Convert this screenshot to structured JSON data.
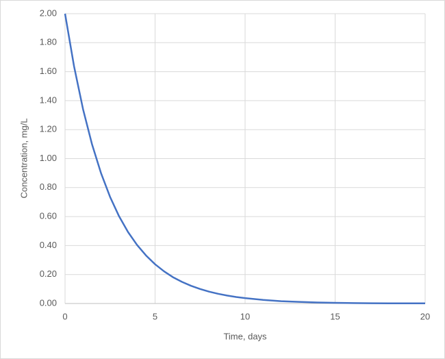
{
  "chart_data": {
    "type": "line",
    "x_label": "Time, days",
    "y_label": "Concentration, mg/L",
    "x": [
      0,
      0.5,
      1,
      1.5,
      2,
      2.5,
      3,
      3.5,
      4,
      4.5,
      5,
      5.5,
      6,
      6.5,
      7,
      7.5,
      8,
      8.5,
      9,
      9.5,
      10,
      11,
      12,
      13,
      14,
      15,
      16,
      17,
      18,
      19,
      20
    ],
    "series": [
      {
        "name": "Concentration",
        "color": "#4472c4",
        "values": [
          2.0,
          1.637,
          1.341,
          1.098,
          0.899,
          0.736,
          0.602,
          0.493,
          0.404,
          0.331,
          0.271,
          0.222,
          0.181,
          0.149,
          0.122,
          0.1,
          0.082,
          0.067,
          0.055,
          0.045,
          0.037,
          0.025,
          0.016,
          0.011,
          0.007,
          0.005,
          0.003,
          0.002,
          0.001,
          0.001,
          0.001
        ]
      }
    ],
    "xlim": [
      0,
      20
    ],
    "xticks": [
      0,
      5,
      10,
      15,
      20
    ],
    "ylim": [
      0,
      2
    ],
    "yticks": [
      {
        "value": 0,
        "label": "0.00"
      },
      {
        "value": 0.2,
        "label": "0.20"
      },
      {
        "value": 0.4,
        "label": "0.40"
      },
      {
        "value": 0.6,
        "label": "0.60"
      },
      {
        "value": 0.8,
        "label": "0.80"
      },
      {
        "value": 1.0,
        "label": "1.00"
      },
      {
        "value": 1.2,
        "label": "1.20"
      },
      {
        "value": 1.4,
        "label": "1.40"
      },
      {
        "value": 1.6,
        "label": "1.60"
      },
      {
        "value": 1.8,
        "label": "1.80"
      },
      {
        "value": 2.0,
        "label": "2.00"
      }
    ],
    "grid": true
  }
}
